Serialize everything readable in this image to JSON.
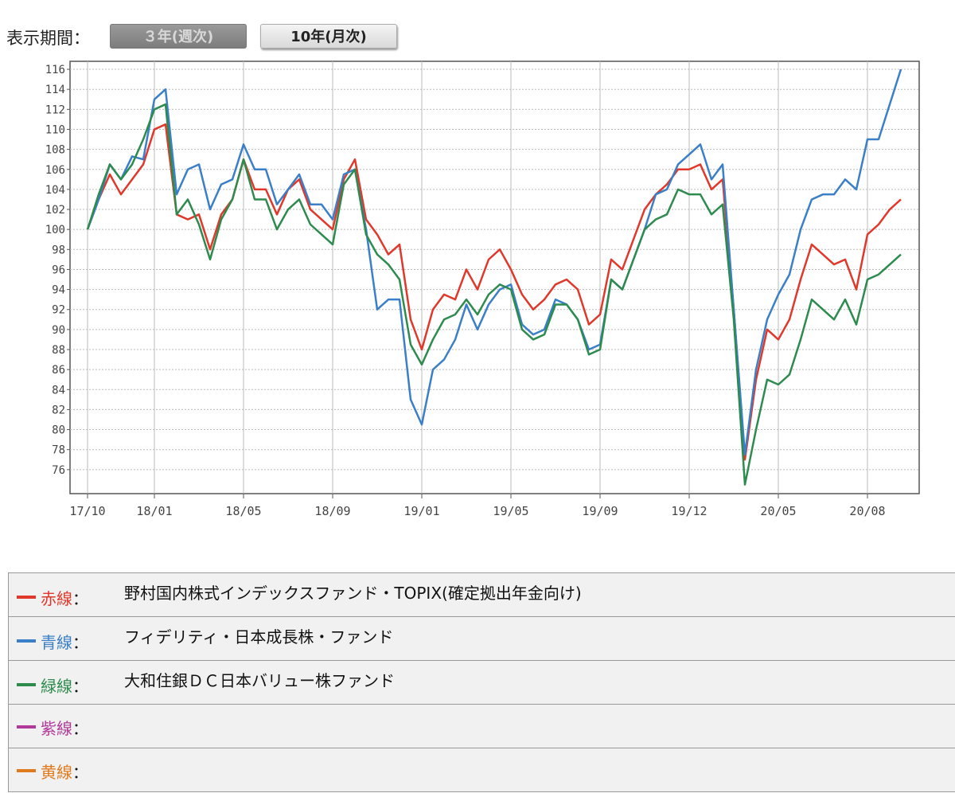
{
  "period_label": "表示期間：",
  "buttons": [
    "３年(週次)",
    "10年(月次)"
  ],
  "chart_data": {
    "type": "line",
    "categories": [
      "17/10",
      null,
      null,
      null,
      null,
      null,
      "18/01",
      null,
      null,
      null,
      null,
      null,
      null,
      null,
      "18/05",
      null,
      null,
      null,
      null,
      null,
      null,
      null,
      "18/09",
      null,
      null,
      null,
      null,
      null,
      null,
      null,
      "19/01",
      null,
      null,
      null,
      null,
      null,
      null,
      null,
      "19/05",
      null,
      null,
      null,
      null,
      null,
      null,
      null,
      "19/09",
      null,
      null,
      null,
      null,
      null,
      null,
      null,
      "19/12",
      null,
      null,
      null,
      null,
      null,
      null,
      null,
      "20/05",
      null,
      null,
      null,
      null,
      null,
      null,
      null,
      "20/08",
      null,
      null,
      null
    ],
    "series": [
      {
        "name": "野村国内株式インデックスファンド・TOPIX(確定拠出年金向け)",
        "color": "#e0382b",
        "values": [
          100,
          103,
          105.5,
          103.5,
          105,
          106.5,
          110,
          110.5,
          101.5,
          101,
          101.5,
          98,
          101.5,
          103,
          107,
          104,
          104,
          101.5,
          104,
          105,
          102,
          101,
          100,
          105,
          107,
          101,
          99.5,
          97.5,
          98.5,
          91,
          88,
          92,
          93.5,
          93,
          96,
          94,
          97,
          98,
          96,
          93.5,
          92,
          93,
          94.5,
          95,
          94,
          90.5,
          91.5,
          97,
          96,
          99,
          102,
          103.5,
          104.5,
          106,
          106,
          106.5,
          104,
          105,
          92,
          77,
          85,
          90,
          89,
          91,
          95,
          98.5,
          97.5,
          96.5,
          97,
          94,
          99.5,
          100.5,
          102,
          103
        ]
      },
      {
        "name": "フィデリティ・日本成長株・ファンド",
        "color": "#3a7fc8",
        "values": [
          100,
          103,
          106.5,
          105,
          107.3,
          107,
          113,
          114,
          103.5,
          106,
          106.5,
          102,
          104.5,
          105,
          108.5,
          106,
          106,
          102.5,
          104,
          105.5,
          102.5,
          102.5,
          101,
          105.5,
          106,
          100,
          92,
          93,
          93,
          83,
          80.5,
          86,
          87,
          89,
          92.5,
          90,
          92.5,
          94,
          94.5,
          90.5,
          89.5,
          90,
          93,
          92.5,
          91,
          88,
          88.5,
          95,
          94,
          97,
          100,
          103.5,
          104,
          106.5,
          107.5,
          108.5,
          105,
          106.5,
          92,
          77.5,
          86,
          91,
          93.5,
          95.5,
          100,
          103,
          103.5,
          103.5,
          105,
          104,
          109,
          109,
          112.5,
          116
        ]
      },
      {
        "name": "大和住銀ＤＣ日本バリュー株ファンド",
        "color": "#2e8b4e",
        "values": [
          100,
          103.5,
          106.5,
          105,
          106.5,
          109,
          112,
          112.5,
          101.5,
          103,
          100.5,
          97,
          101,
          103,
          107,
          103,
          103,
          100,
          102,
          103,
          100.5,
          99.5,
          98.5,
          104.5,
          106,
          99.5,
          97.5,
          96.5,
          95,
          88.5,
          86.5,
          89,
          91,
          91.5,
          93,
          91.5,
          93.5,
          94.5,
          94,
          90,
          89,
          89.5,
          92.5,
          92.5,
          91,
          87.5,
          88,
          95,
          94,
          97,
          100,
          101,
          101.5,
          104,
          103.5,
          103.5,
          101.5,
          102.5,
          91,
          74.5,
          80,
          85,
          84.5,
          85.5,
          89,
          93,
          92,
          91,
          93,
          90.5,
          95,
          95.5,
          96.5,
          97.5
        ]
      }
    ],
    "ylim": [
      73.6,
      116.8
    ],
    "yticks": [
      76,
      78,
      80,
      82,
      84,
      86,
      88,
      90,
      92,
      94,
      96,
      98,
      100,
      102,
      104,
      106,
      108,
      110,
      112,
      114,
      116
    ],
    "grid": true
  },
  "legend_rows": [
    {
      "label": "赤線",
      "color": "#e0382b"
    },
    {
      "label": "青線",
      "color": "#3a7fc8"
    },
    {
      "label": "緑線",
      "color": "#2e8b4e"
    },
    {
      "label": "紫線",
      "color": "#b03a9a"
    },
    {
      "label": "黄線",
      "color": "#e07a1e"
    }
  ],
  "separator": "："
}
